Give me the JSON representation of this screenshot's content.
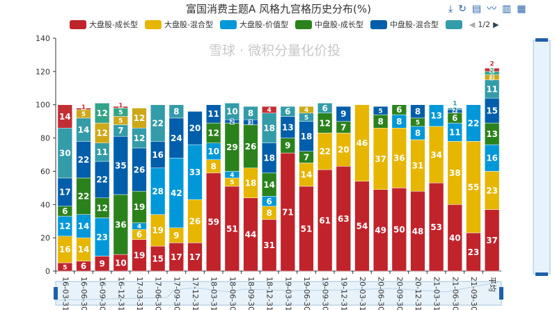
{
  "chart_data": {
    "type": "bar",
    "stacked": true,
    "title": "富国消费主题A 风格九宫格历史分布(%)",
    "ylim": [
      0,
      140
    ],
    "yticks": [
      0,
      20,
      40,
      60,
      80,
      100,
      120,
      140
    ],
    "categories": [
      "16-03-31",
      "16-06-30",
      "16-09-30",
      "16-12-31",
      "17-03-31",
      "17-06-30",
      "17-09-30",
      "17-12-31",
      "18-03-31",
      "18-06-30",
      "18-09-30",
      "18-12-31",
      "19-03-31",
      "19-06-30",
      "19-09-30",
      "19-12-31",
      "20-03-31",
      "20-06-30",
      "20-09-30",
      "20-12-31",
      "21-03-31",
      "21-06-30",
      "21-09-30",
      "平均"
    ],
    "series": [
      {
        "name": "大盘股-成长型",
        "color": "#c1232b",
        "values": [
          5,
          6,
          9,
          10,
          19,
          15,
          17,
          17,
          59,
          51,
          44,
          31,
          71,
          51,
          61,
          63,
          54,
          49,
          50,
          48,
          53,
          40,
          23,
          37
        ]
      },
      {
        "name": "大盘股-混合型",
        "color": "#e6b600",
        "values": [
          16,
          14,
          0,
          0,
          6,
          19,
          9,
          26,
          8,
          5,
          18,
          8,
          0,
          14,
          22,
          20,
          46,
          37,
          36,
          31,
          34,
          38,
          55,
          23
        ]
      },
      {
        "name": "大盘股-价值型",
        "color": "#0098d9",
        "values": [
          12,
          14,
          23,
          0,
          4,
          28,
          42,
          33,
          10,
          4,
          0,
          6,
          0,
          0,
          0,
          0,
          0,
          0,
          8,
          8,
          13,
          11,
          22,
          16
        ]
      },
      {
        "name": "中盘股-成长型",
        "color": "#2b821d",
        "values": [
          6,
          22,
          12,
          36,
          19,
          0,
          0,
          0,
          12,
          29,
          26,
          14,
          9,
          7,
          12,
          7,
          0,
          8,
          6,
          5,
          0,
          6,
          0,
          13
        ]
      },
      {
        "name": "中盘股-混合型",
        "color": "#005eaa",
        "values": [
          17,
          22,
          22,
          35,
          26,
          16,
          24,
          20,
          11,
          2,
          3,
          18,
          13,
          18,
          0,
          9,
          0,
          5,
          0,
          8,
          0,
          2,
          0,
          15
        ]
      },
      {
        "name": "",
        "color": "#339ca8",
        "values": [
          30,
          14,
          11,
          7,
          12,
          22,
          8,
          0,
          0,
          10,
          8,
          18,
          6,
          5,
          6,
          0,
          0,
          0,
          0,
          0,
          0,
          1,
          0,
          11
        ]
      },
      {
        "name": "",
        "color": "#cda819",
        "values": [
          0,
          5,
          12,
          5,
          12,
          0,
          0,
          0,
          0,
          0,
          0,
          0,
          0,
          4,
          0,
          0,
          0,
          0,
          0,
          0,
          0,
          0,
          0,
          3
        ]
      },
      {
        "name": "",
        "color": "#32a487",
        "values": [
          0,
          0,
          12,
          5,
          0,
          0,
          0,
          0,
          0,
          0,
          0,
          0,
          0,
          0,
          0,
          0,
          0,
          0,
          0,
          0,
          0,
          0,
          0,
          2
        ]
      },
      {
        "name": "",
        "color": "#c12e34",
        "values": [
          14,
          1,
          0,
          1,
          0,
          0,
          0,
          0,
          0,
          0,
          0,
          4,
          0,
          0,
          0,
          0,
          0,
          0,
          0,
          0,
          0,
          0,
          0,
          2
        ]
      }
    ]
  },
  "legend": {
    "items": [
      "大盘股-成长型",
      "大盘股-混合型",
      "大盘股-价值型",
      "中盘股-成长型",
      "中盘股-混合型"
    ],
    "page": "1/2"
  },
  "watermark": "雪球 · 微积分量化价投"
}
